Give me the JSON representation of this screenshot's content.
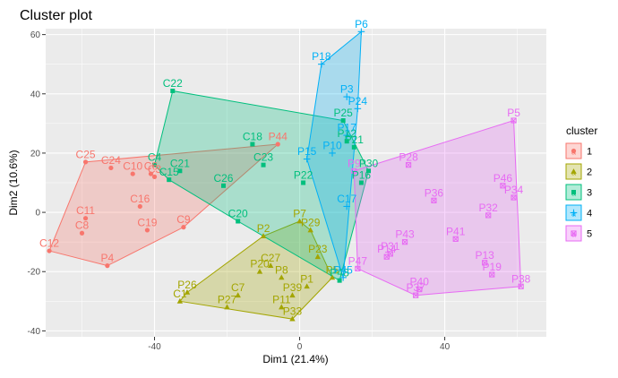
{
  "chart_data": {
    "type": "scatter",
    "title": "Cluster plot",
    "xlabel": "Dim1 (21.4%)",
    "ylabel": "Dim2 (10.6%)",
    "xlim": [
      -70,
      68
    ],
    "ylim": [
      -42,
      62
    ],
    "x_ticks": [
      -40,
      0,
      40
    ],
    "y_ticks": [
      -40,
      -20,
      0,
      20,
      40,
      60
    ],
    "grid": true,
    "legend": {
      "title": "cluster",
      "position": "right",
      "items": [
        {
          "label": "1",
          "color": "#F8766D",
          "shape": "circle"
        },
        {
          "label": "2",
          "color": "#A3A500",
          "shape": "triangle"
        },
        {
          "label": "3",
          "color": "#00BF7D",
          "shape": "square"
        },
        {
          "label": "4",
          "color": "#00B0F6",
          "shape": "plus"
        },
        {
          "label": "5",
          "color": "#E76BF3",
          "shape": "boxed-x"
        }
      ]
    },
    "series": [
      {
        "name": "1",
        "color": "#F8766D",
        "shape": "circle",
        "points": [
          {
            "label": "C25",
            "x": -59,
            "y": 17
          },
          {
            "label": "C24",
            "x": -52,
            "y": 15
          },
          {
            "label": "C10",
            "x": -46,
            "y": 13
          },
          {
            "label": "C6",
            "x": -41,
            "y": 13
          },
          {
            "label": "C16",
            "x": -44,
            "y": 2
          },
          {
            "label": "C11",
            "x": -59,
            "y": -2
          },
          {
            "label": "C8",
            "x": -60,
            "y": -7
          },
          {
            "label": "C19",
            "x": -42,
            "y": -6
          },
          {
            "label": "C9",
            "x": -32,
            "y": -5
          },
          {
            "label": "C12",
            "x": -69,
            "y": -13
          },
          {
            "label": "P4",
            "x": -53,
            "y": -18
          },
          {
            "label": "P44",
            "x": -6,
            "y": 23
          },
          {
            "label": "C3",
            "x": -40,
            "y": 12
          }
        ]
      },
      {
        "name": "2",
        "color": "#A3A500",
        "shape": "triangle",
        "points": [
          {
            "label": "P7",
            "x": 0,
            "y": -3
          },
          {
            "label": "P29",
            "x": 3,
            "y": -6
          },
          {
            "label": "P2",
            "x": -10,
            "y": -8
          },
          {
            "label": "P23",
            "x": 5,
            "y": -15
          },
          {
            "label": "C27",
            "x": -8,
            "y": -18
          },
          {
            "label": "P20",
            "x": -11,
            "y": -20
          },
          {
            "label": "P8",
            "x": -5,
            "y": -22
          },
          {
            "label": "P1",
            "x": 2,
            "y": -25
          },
          {
            "label": "P26",
            "x": -31,
            "y": -27
          },
          {
            "label": "C7",
            "x": -17,
            "y": -28
          },
          {
            "label": "C1",
            "x": -33,
            "y": -30
          },
          {
            "label": "P27",
            "x": -20,
            "y": -32
          },
          {
            "label": "P39",
            "x": -2,
            "y": -28
          },
          {
            "label": "P11",
            "x": -5,
            "y": -32
          },
          {
            "label": "P33",
            "x": -2,
            "y": -36
          },
          {
            "label": "P5",
            "x": 9,
            "y": -22
          }
        ]
      },
      {
        "name": "3",
        "color": "#00BF7D",
        "shape": "square",
        "points": [
          {
            "label": "C22",
            "x": -35,
            "y": 41
          },
          {
            "label": "C18",
            "x": -13,
            "y": 23
          },
          {
            "label": "C23",
            "x": -10,
            "y": 16
          },
          {
            "label": "C4",
            "x": -40,
            "y": 16
          },
          {
            "label": "C15",
            "x": -36,
            "y": 11
          },
          {
            "label": "C21",
            "x": -33,
            "y": 14
          },
          {
            "label": "C26",
            "x": -21,
            "y": 9
          },
          {
            "label": "C20",
            "x": -17,
            "y": -3
          },
          {
            "label": "P22",
            "x": 1,
            "y": 10
          },
          {
            "label": "P25",
            "x": 12,
            "y": 31
          },
          {
            "label": "P30",
            "x": 19,
            "y": 14
          },
          {
            "label": "P16",
            "x": 17,
            "y": 10
          },
          {
            "label": "P21",
            "x": 15,
            "y": 22
          },
          {
            "label": "P12",
            "x": 13,
            "y": 24
          },
          {
            "label": "P48",
            "x": 11,
            "y": -23
          }
        ]
      },
      {
        "name": "4",
        "color": "#00B0F6",
        "shape": "plus",
        "points": [
          {
            "label": "P6",
            "x": 17,
            "y": 61
          },
          {
            "label": "P18",
            "x": 6,
            "y": 50
          },
          {
            "label": "P3",
            "x": 13,
            "y": 39
          },
          {
            "label": "P24",
            "x": 16,
            "y": 35
          },
          {
            "label": "P17",
            "x": 13,
            "y": 26
          },
          {
            "label": "P10",
            "x": 9,
            "y": 20
          },
          {
            "label": "P15",
            "x": 2,
            "y": 18
          },
          {
            "label": "C17",
            "x": 13,
            "y": 2
          },
          {
            "label": "P45",
            "x": 12,
            "y": -22
          }
        ]
      },
      {
        "name": "5",
        "color": "#E76BF3",
        "shape": "boxed-x",
        "points": [
          {
            "label": "P5",
            "x": 59,
            "y": 31
          },
          {
            "label": "P28",
            "x": 30,
            "y": 16
          },
          {
            "label": "P9",
            "x": 15,
            "y": 14
          },
          {
            "label": "P46",
            "x": 56,
            "y": 9
          },
          {
            "label": "P34",
            "x": 59,
            "y": 5
          },
          {
            "label": "P36",
            "x": 37,
            "y": 4
          },
          {
            "label": "P32",
            "x": 52,
            "y": -1
          },
          {
            "label": "P41",
            "x": 43,
            "y": -9
          },
          {
            "label": "P43",
            "x": 29,
            "y": -10
          },
          {
            "label": "P31",
            "x": 25,
            "y": -14
          },
          {
            "label": "P14",
            "x": 24,
            "y": -15
          },
          {
            "label": "P47",
            "x": 16,
            "y": -19
          },
          {
            "label": "P13",
            "x": 51,
            "y": -17
          },
          {
            "label": "P19",
            "x": 53,
            "y": -21
          },
          {
            "label": "P38",
            "x": 61,
            "y": -25
          },
          {
            "label": "P40",
            "x": 33,
            "y": -26
          },
          {
            "label": "P37",
            "x": 32,
            "y": -28
          }
        ]
      }
    ]
  }
}
